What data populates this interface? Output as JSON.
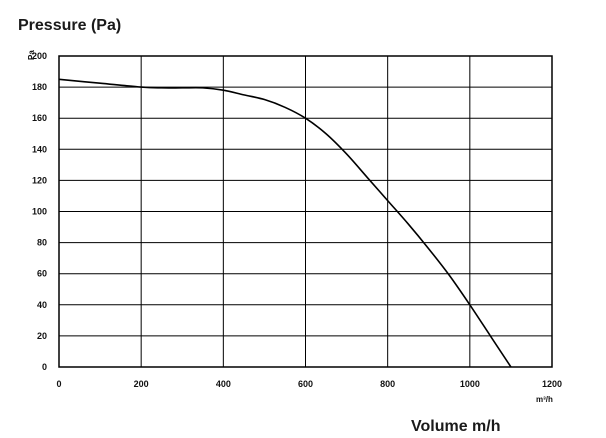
{
  "chart_data": {
    "type": "line",
    "title": "Pressure (Pa)",
    "y_unit": "Pa",
    "xlabel": "Volume m/h",
    "x_unit": "m³/h",
    "xlim": [
      0,
      1200
    ],
    "ylim": [
      0,
      200
    ],
    "x_ticks": [
      0,
      200,
      400,
      600,
      800,
      1000,
      1200
    ],
    "y_ticks": [
      0,
      20,
      40,
      60,
      80,
      100,
      120,
      140,
      160,
      180,
      200
    ],
    "grid": true,
    "series": [
      {
        "x": [
          0,
          100,
          200,
          250,
          300,
          350,
          400,
          450,
          500,
          550,
          600,
          650,
          700,
          750,
          800,
          850,
          900,
          950,
          1000,
          1050,
          1100
        ],
        "y": [
          185,
          182.5,
          180,
          179.5,
          179.5,
          179.5,
          178,
          175,
          172,
          167,
          160,
          150,
          137,
          122,
          107,
          92,
          76,
          59,
          40,
          20,
          0
        ]
      }
    ]
  }
}
